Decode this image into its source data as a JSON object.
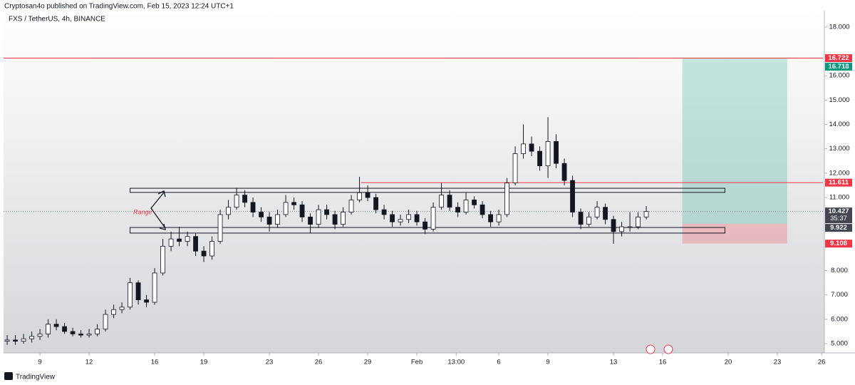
{
  "header": {
    "publisher": "Cryptosan4o published on TradingView.com, Feb 15, 2023 12:24 UTC+1",
    "brand": "TradingView"
  },
  "chart_data": {
    "type": "candlestick",
    "title": "FXS / TetherUS, 4h, BINANCE",
    "x": [
      -2,
      -1.5,
      -1,
      -0.5,
      0,
      0.5,
      1,
      1.5,
      2,
      2.5,
      3,
      3.5,
      4,
      4.5,
      5,
      5.5,
      6,
      6.5,
      7,
      7.5,
      8,
      8.5,
      9,
      9.5,
      10,
      10.5,
      11,
      11.5,
      12,
      12.5,
      13,
      13.5,
      14,
      14.5,
      15,
      15.5,
      16,
      16.5,
      17,
      17.5,
      18,
      18.5,
      19,
      19.5,
      20,
      20.5,
      21,
      21.5,
      22,
      22.5,
      23,
      23.5,
      24,
      24.5,
      25,
      25.5,
      26,
      26.5,
      27,
      27.5,
      28,
      28.5,
      29,
      29.5,
      30,
      30.5,
      31,
      31.5,
      32,
      32.5,
      33,
      33.5,
      34,
      34.5,
      35,
      35.5,
      36,
      36.5,
      37
    ],
    "open": [
      5.1,
      5.15,
      5.1,
      5.2,
      5.3,
      5.4,
      5.8,
      5.7,
      5.5,
      5.4,
      5.35,
      5.4,
      5.6,
      6.2,
      6.4,
      6.5,
      7.5,
      6.8,
      6.7,
      7.9,
      9.0,
      9.3,
      9.2,
      9.4,
      8.8,
      8.6,
      9.2,
      10.3,
      10.6,
      11.1,
      10.8,
      10.4,
      10.2,
      9.9,
      10.3,
      10.8,
      10.7,
      10.2,
      9.9,
      10.5,
      10.3,
      9.9,
      10.4,
      10.9,
      11.2,
      11.0,
      10.5,
      10.3,
      10.0,
      10.1,
      10.3,
      10.0,
      9.7,
      10.6,
      11.1,
      10.6,
      10.4,
      10.9,
      10.7,
      10.3,
      10.0,
      10.3,
      11.6,
      12.8,
      13.2,
      12.9,
      12.3,
      13.3,
      12.4,
      11.7,
      10.4,
      9.9,
      10.2,
      10.6,
      10.1,
      9.6,
      9.8,
      9.8,
      10.2
    ],
    "high": [
      5.35,
      5.35,
      5.4,
      5.5,
      5.6,
      6.0,
      6.0,
      5.85,
      5.65,
      5.55,
      5.6,
      5.8,
      6.4,
      6.6,
      6.7,
      7.7,
      7.6,
      7.0,
      8.1,
      9.3,
      9.6,
      9.8,
      9.6,
      9.55,
      9.0,
      9.4,
      10.5,
      10.9,
      11.4,
      11.3,
      11.0,
      10.6,
      10.4,
      10.5,
      11.1,
      11.0,
      10.85,
      10.35,
      10.7,
      10.7,
      10.45,
      10.6,
      11.1,
      11.85,
      11.5,
      11.15,
      10.7,
      10.45,
      10.3,
      10.5,
      10.45,
      10.15,
      10.8,
      11.6,
      11.3,
      10.8,
      11.2,
      11.05,
      10.85,
      10.45,
      10.5,
      11.8,
      13.1,
      14.0,
      13.5,
      13.1,
      14.3,
      13.6,
      12.6,
      11.9,
      10.55,
      10.4,
      10.85,
      10.75,
      10.25,
      10.0,
      10.4,
      10.4,
      10.65
    ],
    "low": [
      4.95,
      4.95,
      5.0,
      5.05,
      5.15,
      5.25,
      5.55,
      5.4,
      5.3,
      5.25,
      5.25,
      5.3,
      5.5,
      6.05,
      6.25,
      6.4,
      6.6,
      6.5,
      6.6,
      7.8,
      8.8,
      9.0,
      9.0,
      8.6,
      8.35,
      8.45,
      9.1,
      10.1,
      10.5,
      10.6,
      10.2,
      10.0,
      9.6,
      9.75,
      10.2,
      10.5,
      10.0,
      9.55,
      9.75,
      10.1,
      9.7,
      9.8,
      10.3,
      10.8,
      10.85,
      10.35,
      10.1,
      9.8,
      9.85,
      9.95,
      9.85,
      9.5,
      9.6,
      10.5,
      10.45,
      10.2,
      10.3,
      10.55,
      10.15,
      9.8,
      9.85,
      10.2,
      11.5,
      12.6,
      12.7,
      12.1,
      11.8,
      12.2,
      11.5,
      10.2,
      9.7,
      9.8,
      10.1,
      9.9,
      9.1,
      9.4,
      9.6,
      9.7,
      10.1
    ],
    "close": [
      5.15,
      5.1,
      5.2,
      5.3,
      5.4,
      5.8,
      5.7,
      5.5,
      5.4,
      5.35,
      5.4,
      5.6,
      6.2,
      6.4,
      6.5,
      7.5,
      6.8,
      6.7,
      7.9,
      9.0,
      9.3,
      9.2,
      9.4,
      8.8,
      8.6,
      9.2,
      10.3,
      10.6,
      11.1,
      10.8,
      10.4,
      10.2,
      9.9,
      10.3,
      10.8,
      10.7,
      10.2,
      9.9,
      10.5,
      10.3,
      9.9,
      10.4,
      10.9,
      11.2,
      11.0,
      10.5,
      10.3,
      10.0,
      10.1,
      10.3,
      10.0,
      9.7,
      10.6,
      11.1,
      10.6,
      10.4,
      10.9,
      10.7,
      10.3,
      10.0,
      10.3,
      11.6,
      12.8,
      13.2,
      12.9,
      12.3,
      13.3,
      12.4,
      11.7,
      10.4,
      9.9,
      10.2,
      10.6,
      10.1,
      9.6,
      9.8,
      9.8,
      10.2,
      10.43
    ],
    "up_color": "#ffffff",
    "down_color": "#131722",
    "xlim": [
      -2.22,
      47.78
    ],
    "xticks": [
      {
        "value": 0,
        "label": "9"
      },
      {
        "value": 3,
        "label": "12"
      },
      {
        "value": 7,
        "label": "16"
      },
      {
        "value": 10,
        "label": "19"
      },
      {
        "value": 14,
        "label": "23"
      },
      {
        "value": 17,
        "label": "26"
      },
      {
        "value": 20,
        "label": "29"
      },
      {
        "value": 23,
        "label": "Feb"
      },
      {
        "value": 25.4,
        "label": "13:00"
      },
      {
        "value": 28,
        "label": "6"
      },
      {
        "value": 31,
        "label": "9"
      },
      {
        "value": 35,
        "label": "13"
      },
      {
        "value": 38,
        "label": "16"
      },
      {
        "value": 42,
        "label": "20"
      },
      {
        "value": 45,
        "label": "23"
      },
      {
        "value": 47.7,
        "label": "26"
      }
    ],
    "ylim": [
      4.62,
      18.67
    ],
    "yticks": [
      {
        "value": 18,
        "label": "18.000"
      },
      {
        "value": 16,
        "label": "16.000"
      },
      {
        "value": 15,
        "label": "15.000"
      },
      {
        "value": 14,
        "label": "14.000"
      },
      {
        "value": 13,
        "label": "13.000"
      },
      {
        "value": 12,
        "label": "12.000"
      },
      {
        "value": 11,
        "label": "11.000"
      },
      {
        "value": 8,
        "label": "8.000"
      },
      {
        "value": 7,
        "label": "7.000"
      },
      {
        "value": 6,
        "label": "6.000"
      },
      {
        "value": 5,
        "label": "5.000"
      }
    ],
    "hlines": [
      {
        "value": 16.722,
        "color": "#f23645"
      },
      {
        "value": 11.611,
        "color": "#f23645",
        "from": 19.6
      },
      {
        "value": 10.427,
        "color": "#787b86",
        "style": "dotted"
      }
    ],
    "rectangles": [
      {
        "y": [
          11.21,
          11.38
        ],
        "x": [
          5.5,
          41.8
        ]
      },
      {
        "y": [
          9.54,
          9.77
        ],
        "x": [
          5.5,
          41.8
        ]
      }
    ],
    "zones": [
      {
        "y": [
          9.922,
          16.718
        ],
        "x": [
          39.2,
          45.6
        ],
        "color": "rgba(8,153,129,0.22)"
      },
      {
        "y": [
          9.108,
          9.922
        ],
        "x": [
          39.2,
          45.6
        ],
        "color": "rgba(242,54,69,0.25)"
      }
    ],
    "annotation": "Range",
    "price_labels": [
      {
        "value": 16.722,
        "label": "16.722",
        "color": "#f23645"
      },
      {
        "value": 16.718,
        "label": "16.718",
        "color": "#089981"
      },
      {
        "value": 11.611,
        "label": "11.611",
        "color": "#f23645"
      },
      {
        "value": 10.427,
        "label": "10.427",
        "color": "#434651",
        "countdown": "35:37"
      },
      {
        "value": 9.922,
        "label": "9.922",
        "color": "#434651"
      },
      {
        "value": 9.108,
        "label": "9.108",
        "color": "#f23645"
      }
    ]
  }
}
